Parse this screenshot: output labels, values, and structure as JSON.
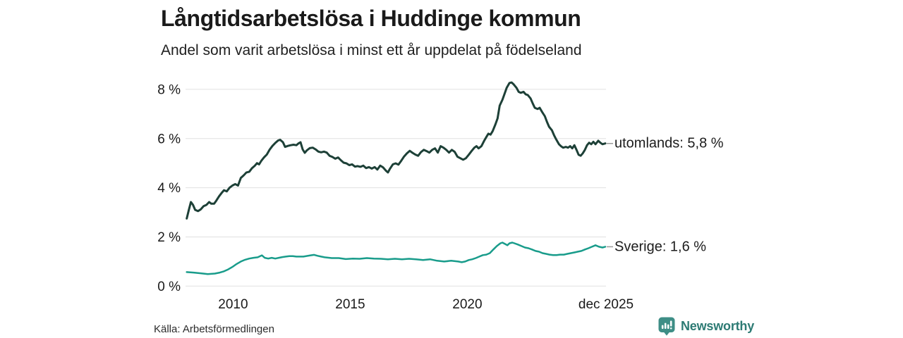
{
  "header": {
    "title": "Långtidsarbetslösa i Huddinge kommun",
    "subtitle": "Andel som varit arbetslösa i minst ett år uppdelat på födelseland"
  },
  "footer": {
    "source": "Källa: Arbetsförmedlingen",
    "brand": "Newsworthy",
    "brand_text_color": "#2d7b74",
    "brand_icon": "newsworthy-speech-bubble-bar-chart",
    "brand_icon_color": "#3e8e86"
  },
  "colors": {
    "gridline": "#e0e0e0",
    "axis_text": "#1a1a1a",
    "connector": "#999999",
    "background": "#ffffff"
  },
  "chart_data": {
    "type": "line",
    "title": "Långtidsarbetslösa i Huddinge kommun",
    "subtitle": "Andel som varit arbetslösa i minst ett år uppdelat på födelseland",
    "xlabel": "",
    "ylabel": "",
    "x_domain": [
      2008.0,
      2025.92
    ],
    "ylim": [
      0,
      8.6
    ],
    "grid": "horizontal",
    "legend_position": "right-end-labels",
    "y_ticks": [
      {
        "v": 0,
        "label": "0 %"
      },
      {
        "v": 2,
        "label": "2 %"
      },
      {
        "v": 4,
        "label": "4 %"
      },
      {
        "v": 6,
        "label": "6 %"
      },
      {
        "v": 8,
        "label": "8 %"
      }
    ],
    "x_ticks": [
      {
        "v": 2010,
        "label": "2010"
      },
      {
        "v": 2015,
        "label": "2015"
      },
      {
        "v": 2020,
        "label": "2020"
      },
      {
        "v": 2025.92,
        "label": "dec 2025"
      }
    ],
    "series": [
      {
        "name": "utomlands",
        "label": "utomlands: 5,8 %",
        "last_value": "5,8 %",
        "color": "#1d4037",
        "stroke_width": 3,
        "points": [
          [
            2008.02,
            2.75
          ],
          [
            2008.11,
            3.1
          ],
          [
            2008.2,
            3.42
          ],
          [
            2008.29,
            3.3
          ],
          [
            2008.38,
            3.1
          ],
          [
            2008.5,
            3.05
          ],
          [
            2008.62,
            3.12
          ],
          [
            2008.74,
            3.25
          ],
          [
            2008.86,
            3.3
          ],
          [
            2008.98,
            3.42
          ],
          [
            2009.07,
            3.35
          ],
          [
            2009.19,
            3.35
          ],
          [
            2009.28,
            3.47
          ],
          [
            2009.4,
            3.65
          ],
          [
            2009.52,
            3.8
          ],
          [
            2009.61,
            3.9
          ],
          [
            2009.73,
            3.85
          ],
          [
            2009.85,
            4.0
          ],
          [
            2009.97,
            4.09
          ],
          [
            2010.09,
            4.15
          ],
          [
            2010.21,
            4.09
          ],
          [
            2010.33,
            4.4
          ],
          [
            2010.45,
            4.5
          ],
          [
            2010.57,
            4.62
          ],
          [
            2010.69,
            4.65
          ],
          [
            2010.81,
            4.8
          ],
          [
            2010.93,
            4.9
          ],
          [
            2011.02,
            5.0
          ],
          [
            2011.11,
            4.95
          ],
          [
            2011.2,
            5.09
          ],
          [
            2011.32,
            5.23
          ],
          [
            2011.44,
            5.35
          ],
          [
            2011.56,
            5.55
          ],
          [
            2011.68,
            5.7
          ],
          [
            2011.8,
            5.82
          ],
          [
            2011.92,
            5.92
          ],
          [
            2012.01,
            5.95
          ],
          [
            2012.13,
            5.85
          ],
          [
            2012.22,
            5.66
          ],
          [
            2012.34,
            5.7
          ],
          [
            2012.46,
            5.73
          ],
          [
            2012.58,
            5.75
          ],
          [
            2012.7,
            5.73
          ],
          [
            2012.79,
            5.8
          ],
          [
            2012.88,
            5.85
          ],
          [
            2012.97,
            5.56
          ],
          [
            2013.06,
            5.42
          ],
          [
            2013.15,
            5.52
          ],
          [
            2013.27,
            5.61
          ],
          [
            2013.4,
            5.63
          ],
          [
            2013.52,
            5.56
          ],
          [
            2013.64,
            5.47
          ],
          [
            2013.76,
            5.44
          ],
          [
            2013.88,
            5.47
          ],
          [
            2014.0,
            5.43
          ],
          [
            2014.12,
            5.3
          ],
          [
            2014.24,
            5.25
          ],
          [
            2014.36,
            5.18
          ],
          [
            2014.48,
            5.23
          ],
          [
            2014.6,
            5.12
          ],
          [
            2014.72,
            5.02
          ],
          [
            2014.84,
            4.99
          ],
          [
            2014.96,
            4.92
          ],
          [
            2015.08,
            4.95
          ],
          [
            2015.2,
            4.86
          ],
          [
            2015.32,
            4.88
          ],
          [
            2015.44,
            4.85
          ],
          [
            2015.56,
            4.9
          ],
          [
            2015.68,
            4.8
          ],
          [
            2015.8,
            4.84
          ],
          [
            2015.92,
            4.78
          ],
          [
            2016.04,
            4.84
          ],
          [
            2016.16,
            4.74
          ],
          [
            2016.28,
            4.9
          ],
          [
            2016.4,
            4.83
          ],
          [
            2016.52,
            4.7
          ],
          [
            2016.61,
            4.62
          ],
          [
            2016.7,
            4.78
          ],
          [
            2016.82,
            4.95
          ],
          [
            2016.94,
            4.99
          ],
          [
            2017.06,
            4.94
          ],
          [
            2017.18,
            5.1
          ],
          [
            2017.3,
            5.27
          ],
          [
            2017.42,
            5.4
          ],
          [
            2017.54,
            5.5
          ],
          [
            2017.66,
            5.42
          ],
          [
            2017.78,
            5.35
          ],
          [
            2017.9,
            5.3
          ],
          [
            2018.02,
            5.45
          ],
          [
            2018.14,
            5.54
          ],
          [
            2018.26,
            5.49
          ],
          [
            2018.38,
            5.43
          ],
          [
            2018.5,
            5.54
          ],
          [
            2018.62,
            5.6
          ],
          [
            2018.74,
            5.43
          ],
          [
            2018.86,
            5.69
          ],
          [
            2018.98,
            5.63
          ],
          [
            2019.1,
            5.54
          ],
          [
            2019.22,
            5.43
          ],
          [
            2019.34,
            5.54
          ],
          [
            2019.46,
            5.46
          ],
          [
            2019.58,
            5.26
          ],
          [
            2019.7,
            5.2
          ],
          [
            2019.82,
            5.14
          ],
          [
            2019.94,
            5.2
          ],
          [
            2020.06,
            5.34
          ],
          [
            2020.18,
            5.49
          ],
          [
            2020.3,
            5.63
          ],
          [
            2020.39,
            5.69
          ],
          [
            2020.48,
            5.6
          ],
          [
            2020.6,
            5.69
          ],
          [
            2020.72,
            5.91
          ],
          [
            2020.81,
            6.06
          ],
          [
            2020.9,
            6.2
          ],
          [
            2020.99,
            6.16
          ],
          [
            2021.08,
            6.3
          ],
          [
            2021.2,
            6.58
          ],
          [
            2021.29,
            6.82
          ],
          [
            2021.38,
            7.34
          ],
          [
            2021.5,
            7.58
          ],
          [
            2021.59,
            7.82
          ],
          [
            2021.68,
            8.06
          ],
          [
            2021.8,
            8.26
          ],
          [
            2021.89,
            8.28
          ],
          [
            2021.98,
            8.2
          ],
          [
            2022.1,
            8.06
          ],
          [
            2022.19,
            7.9
          ],
          [
            2022.28,
            7.86
          ],
          [
            2022.4,
            7.9
          ],
          [
            2022.49,
            7.8
          ],
          [
            2022.58,
            7.77
          ],
          [
            2022.7,
            7.63
          ],
          [
            2022.79,
            7.43
          ],
          [
            2022.88,
            7.25
          ],
          [
            2023.0,
            7.2
          ],
          [
            2023.09,
            7.25
          ],
          [
            2023.18,
            7.1
          ],
          [
            2023.31,
            6.91
          ],
          [
            2023.4,
            6.68
          ],
          [
            2023.49,
            6.48
          ],
          [
            2023.61,
            6.34
          ],
          [
            2023.7,
            6.14
          ],
          [
            2023.79,
            5.97
          ],
          [
            2023.91,
            5.77
          ],
          [
            2024.0,
            5.69
          ],
          [
            2024.09,
            5.63
          ],
          [
            2024.21,
            5.66
          ],
          [
            2024.3,
            5.63
          ],
          [
            2024.39,
            5.69
          ],
          [
            2024.48,
            5.6
          ],
          [
            2024.57,
            5.73
          ],
          [
            2024.66,
            5.54
          ],
          [
            2024.75,
            5.34
          ],
          [
            2024.84,
            5.3
          ],
          [
            2024.93,
            5.4
          ],
          [
            2025.02,
            5.54
          ],
          [
            2025.11,
            5.73
          ],
          [
            2025.2,
            5.83
          ],
          [
            2025.29,
            5.77
          ],
          [
            2025.38,
            5.87
          ],
          [
            2025.47,
            5.77
          ],
          [
            2025.59,
            5.91
          ],
          [
            2025.68,
            5.83
          ],
          [
            2025.77,
            5.77
          ],
          [
            2025.89,
            5.8
          ]
        ]
      },
      {
        "name": "Sverige",
        "label": "Sverige: 1,6 %",
        "last_value": "1,6 %",
        "color": "#199c8b",
        "stroke_width": 2.5,
        "points": [
          [
            2008.02,
            0.57
          ],
          [
            2008.32,
            0.55
          ],
          [
            2008.62,
            0.52
          ],
          [
            2008.92,
            0.49
          ],
          [
            2009.22,
            0.51
          ],
          [
            2009.43,
            0.55
          ],
          [
            2009.61,
            0.6
          ],
          [
            2009.79,
            0.68
          ],
          [
            2009.97,
            0.78
          ],
          [
            2010.15,
            0.9
          ],
          [
            2010.33,
            1.0
          ],
          [
            2010.51,
            1.07
          ],
          [
            2010.69,
            1.12
          ],
          [
            2010.87,
            1.15
          ],
          [
            2011.05,
            1.17
          ],
          [
            2011.23,
            1.25
          ],
          [
            2011.35,
            1.15
          ],
          [
            2011.5,
            1.12
          ],
          [
            2011.65,
            1.15
          ],
          [
            2011.8,
            1.12
          ],
          [
            2011.95,
            1.15
          ],
          [
            2012.1,
            1.18
          ],
          [
            2012.25,
            1.2
          ],
          [
            2012.4,
            1.22
          ],
          [
            2012.55,
            1.22
          ],
          [
            2012.7,
            1.2
          ],
          [
            2013.0,
            1.2
          ],
          [
            2013.31,
            1.25
          ],
          [
            2013.46,
            1.27
          ],
          [
            2013.61,
            1.23
          ],
          [
            2013.76,
            1.2
          ],
          [
            2013.91,
            1.17
          ],
          [
            2014.21,
            1.14
          ],
          [
            2014.51,
            1.14
          ],
          [
            2014.81,
            1.1
          ],
          [
            2015.11,
            1.12
          ],
          [
            2015.41,
            1.11
          ],
          [
            2015.71,
            1.14
          ],
          [
            2016.01,
            1.12
          ],
          [
            2016.31,
            1.11
          ],
          [
            2016.61,
            1.09
          ],
          [
            2016.91,
            1.11
          ],
          [
            2017.21,
            1.09
          ],
          [
            2017.51,
            1.11
          ],
          [
            2017.81,
            1.09
          ],
          [
            2018.11,
            1.06
          ],
          [
            2018.41,
            1.09
          ],
          [
            2018.71,
            1.03
          ],
          [
            2019.01,
            1.0
          ],
          [
            2019.31,
            1.03
          ],
          [
            2019.61,
            1.0
          ],
          [
            2019.76,
            0.97
          ],
          [
            2019.91,
            1.0
          ],
          [
            2020.06,
            1.06
          ],
          [
            2020.21,
            1.09
          ],
          [
            2020.36,
            1.14
          ],
          [
            2020.51,
            1.2
          ],
          [
            2020.66,
            1.26
          ],
          [
            2020.81,
            1.28
          ],
          [
            2020.96,
            1.34
          ],
          [
            2021.11,
            1.49
          ],
          [
            2021.26,
            1.63
          ],
          [
            2021.41,
            1.74
          ],
          [
            2021.5,
            1.77
          ],
          [
            2021.62,
            1.71
          ],
          [
            2021.71,
            1.66
          ],
          [
            2021.8,
            1.74
          ],
          [
            2021.92,
            1.77
          ],
          [
            2022.01,
            1.74
          ],
          [
            2022.16,
            1.69
          ],
          [
            2022.31,
            1.63
          ],
          [
            2022.46,
            1.57
          ],
          [
            2022.61,
            1.54
          ],
          [
            2022.76,
            1.49
          ],
          [
            2022.91,
            1.43
          ],
          [
            2023.06,
            1.4
          ],
          [
            2023.21,
            1.34
          ],
          [
            2023.36,
            1.31
          ],
          [
            2023.51,
            1.28
          ],
          [
            2023.66,
            1.26
          ],
          [
            2023.81,
            1.26
          ],
          [
            2023.96,
            1.28
          ],
          [
            2024.12,
            1.28
          ],
          [
            2024.27,
            1.31
          ],
          [
            2024.42,
            1.34
          ],
          [
            2024.57,
            1.37
          ],
          [
            2024.72,
            1.4
          ],
          [
            2024.87,
            1.43
          ],
          [
            2025.02,
            1.49
          ],
          [
            2025.17,
            1.54
          ],
          [
            2025.32,
            1.6
          ],
          [
            2025.47,
            1.66
          ],
          [
            2025.62,
            1.6
          ],
          [
            2025.77,
            1.57
          ],
          [
            2025.89,
            1.6
          ]
        ]
      }
    ]
  }
}
